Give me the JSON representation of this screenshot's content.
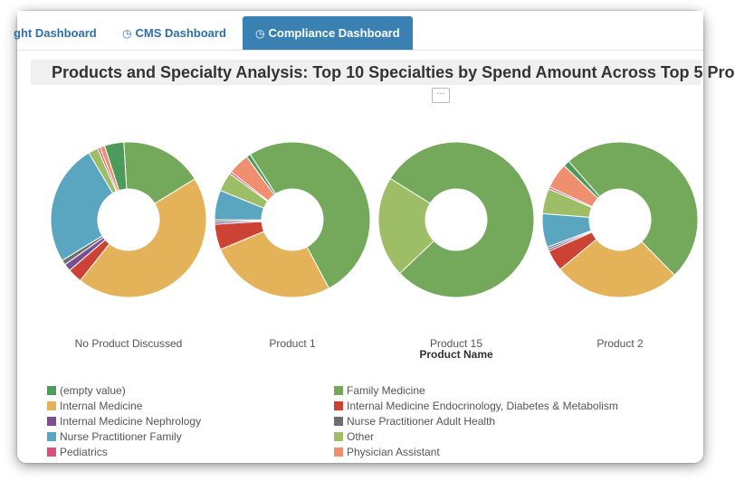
{
  "tabs": [
    {
      "label": "ght Dashboard",
      "icon": "none",
      "active": false
    },
    {
      "label": "CMS Dashboard",
      "icon": "clock-gauge-icon",
      "active": false
    },
    {
      "label": "Compliance Dashboard",
      "icon": "clock-gauge-icon",
      "active": true
    }
  ],
  "menu_button": "···",
  "chart_data": {
    "type": "pie",
    "title": "Products and Specialty Analysis: Top 10 Specialties by Spend Amount Across Top 5 Pro",
    "xlabel": "Product Name",
    "categories": [
      "No Product Discussed",
      "Product 1",
      "Product 15",
      "Product 2"
    ],
    "series": [
      {
        "name": "(empty value)",
        "color": "#4e9a5a",
        "values": [
          4,
          1,
          0,
          1.5
        ]
      },
      {
        "name": "Family Medicine",
        "color": "#74a85a",
        "values": [
          17,
          58,
          79,
          56
        ]
      },
      {
        "name": "Internal Medicine",
        "color": "#e4b359",
        "values": [
          44,
          30,
          0,
          30
        ]
      },
      {
        "name": "Internal Medicine Endocrinology, Diabetes & Metabolism",
        "color": "#cc4336",
        "values": [
          3,
          6,
          0,
          5
        ]
      },
      {
        "name": "Internal Medicine Nephrology",
        "color": "#7b4f8f",
        "values": [
          1.5,
          0.5,
          0,
          0.5
        ]
      },
      {
        "name": "Nurse Practitioner Adult Health",
        "color": "#6f6f6f",
        "values": [
          1,
          0.5,
          0,
          0.5
        ]
      },
      {
        "name": "Nurse Practitioner Family",
        "color": "#5aa6c0",
        "values": [
          25,
          7,
          0,
          8
        ]
      },
      {
        "name": "Other",
        "color": "#9dbd66",
        "values": [
          2,
          4.5,
          21,
          6
        ]
      },
      {
        "name": "Pediatrics",
        "color": "#d4547d",
        "values": [
          0.5,
          0.5,
          0,
          0.5
        ]
      },
      {
        "name": "Physician Assistant",
        "color": "#ee9070",
        "values": [
          1,
          5,
          0,
          6
        ]
      }
    ],
    "start_angles_deg": [
      252,
      234,
      212,
      224
    ]
  }
}
